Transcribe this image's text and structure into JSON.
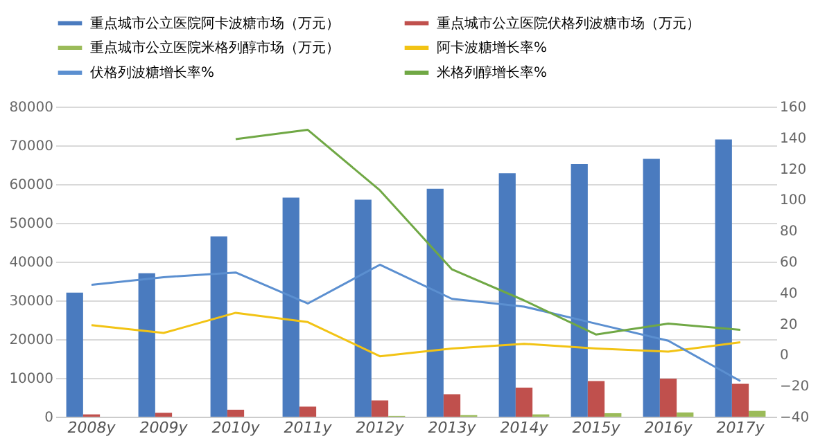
{
  "chart_data": {
    "type": "bar",
    "categories": [
      "2008y",
      "2009y",
      "2010y",
      "2011y",
      "2012y",
      "2013y",
      "2014y",
      "2015y",
      "2016y",
      "2017y"
    ],
    "series": [
      {
        "name": "重点城市公立医院阿卡波糖市场（万元）",
        "color": "#4a7bbf",
        "values": [
          32000,
          37000,
          46500,
          56500,
          56000,
          58800,
          62800,
          65200,
          66500,
          71500
        ]
      },
      {
        "name": "重点城市公立医院伏格列波糖市场（万元）",
        "color": "#c0504d",
        "values": [
          600,
          1000,
          1800,
          2600,
          4200,
          5800,
          7500,
          9200,
          9800,
          8500
        ]
      },
      {
        "name": "重点城市公立医院米格列醇市场（万元）",
        "color": "#9bbb59",
        "values": [
          null,
          null,
          null,
          null,
          200,
          400,
          600,
          900,
          1100,
          1500
        ]
      },
      {
        "name": "阿卡波糖增长率%",
        "type": "line",
        "axis": "y2",
        "color": "#f2c314",
        "values": [
          19,
          14,
          27,
          21,
          -1,
          4,
          7,
          4,
          2,
          8
        ]
      },
      {
        "name": "伏格列波糖增长率%",
        "type": "line",
        "axis": "y2",
        "color": "#5b8fd0",
        "values": [
          45,
          50,
          53,
          33,
          58,
          36,
          31,
          20,
          9,
          -17
        ]
      },
      {
        "name": "米格列醇增长率%",
        "type": "line",
        "axis": "y2",
        "color": "#70a845",
        "values": [
          null,
          null,
          139,
          145,
          106,
          55,
          35,
          13,
          20,
          16
        ]
      }
    ],
    "ylim": [
      0,
      80000
    ],
    "yticks": [
      0,
      10000,
      20000,
      30000,
      40000,
      50000,
      60000,
      70000,
      80000
    ],
    "y2lim": [
      -40,
      160
    ],
    "y2ticks": [
      -40,
      -20,
      0,
      20,
      40,
      60,
      80,
      100,
      120,
      140,
      160
    ],
    "grid": "y",
    "legend": "top"
  }
}
